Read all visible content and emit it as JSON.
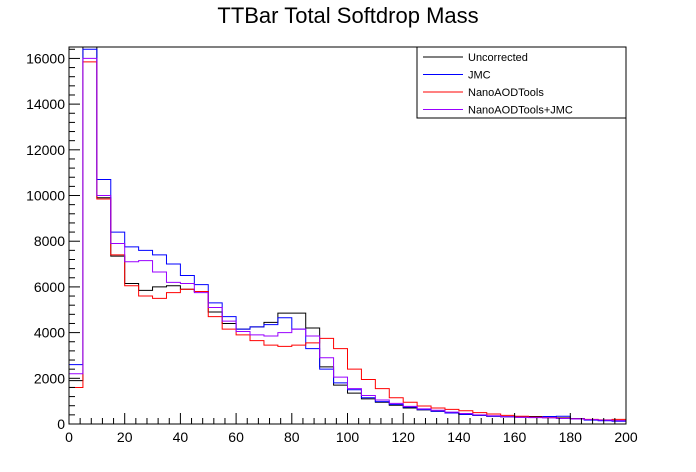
{
  "chart_data": {
    "type": "line",
    "style": "histogram-step",
    "title": "TTBar Total Softdrop Mass",
    "xlabel": "",
    "ylabel": "",
    "xlim": [
      0,
      200
    ],
    "ylim": [
      0,
      16500
    ],
    "x_ticks": [
      0,
      20,
      40,
      60,
      80,
      100,
      120,
      140,
      160,
      180,
      200
    ],
    "y_ticks": [
      0,
      2000,
      4000,
      6000,
      8000,
      10000,
      12000,
      14000,
      16000
    ],
    "bin_edges": [
      0,
      5,
      10,
      15,
      20,
      25,
      30,
      35,
      40,
      45,
      50,
      55,
      60,
      65,
      70,
      75,
      80,
      85,
      90,
      95,
      100,
      105,
      110,
      115,
      120,
      125,
      130,
      135,
      140,
      145,
      150,
      155,
      160,
      165,
      170,
      175,
      180,
      185,
      190,
      195,
      200
    ],
    "legend_position": "top-right",
    "series": [
      {
        "name": "Uncorrected",
        "color": "#000000",
        "values": [
          1900,
          16500,
          9900,
          7350,
          6150,
          5850,
          6000,
          6050,
          5900,
          5800,
          4900,
          4400,
          4150,
          4250,
          4450,
          4850,
          4850,
          4200,
          2500,
          1700,
          1350,
          1100,
          950,
          820,
          700,
          620,
          560,
          480,
          420,
          380,
          340,
          320,
          300,
          330,
          330,
          270,
          230,
          190,
          160,
          140
        ]
      },
      {
        "name": "JMC",
        "color": "#0000ff",
        "values": [
          2600,
          16400,
          10700,
          8400,
          7750,
          7600,
          7400,
          7000,
          6500,
          6100,
          5300,
          4700,
          4150,
          4250,
          4350,
          4650,
          4150,
          3300,
          2400,
          1800,
          1500,
          1150,
          980,
          860,
          740,
          630,
          560,
          480,
          420,
          380,
          340,
          320,
          300,
          300,
          330,
          340,
          240,
          170,
          140,
          120
        ]
      },
      {
        "name": "NanoAODTools",
        "color": "#ff0000",
        "values": [
          1600,
          15850,
          9850,
          7400,
          6050,
          5600,
          5500,
          5750,
          5900,
          5800,
          4700,
          4150,
          3900,
          3650,
          3450,
          3400,
          3450,
          3550,
          3750,
          3300,
          2400,
          1950,
          1550,
          1150,
          950,
          790,
          700,
          640,
          580,
          500,
          440,
          380,
          340,
          300,
          280,
          250,
          230,
          200,
          180,
          200
        ]
      },
      {
        "name": "NanoAODTools+JMC",
        "color": "#9900ff",
        "values": [
          2200,
          16000,
          10000,
          7900,
          7100,
          7150,
          6650,
          6200,
          6150,
          5750,
          5100,
          4500,
          4050,
          3900,
          3850,
          4000,
          4150,
          3850,
          2900,
          2050,
          1550,
          1250,
          1050,
          900,
          770,
          660,
          600,
          520,
          460,
          400,
          360,
          320,
          290,
          280,
          270,
          240,
          220,
          190,
          170,
          150
        ]
      }
    ]
  }
}
